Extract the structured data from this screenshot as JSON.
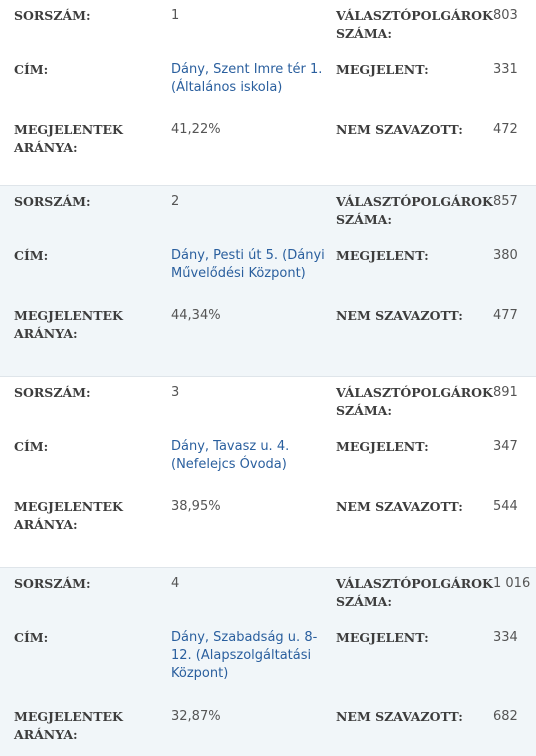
{
  "labels": {
    "number": "SORSZÁM:",
    "voters": "VÁLASZTÓPOLGÁROK SZÁMA:",
    "address": "CÍM:",
    "appeared": "MEGJELENT:",
    "turnout": "MEGJELENTEK ARÁNYA:",
    "not_voted": "NEM SZAVAZOTT:"
  },
  "stations": [
    {
      "number": "1",
      "voters": "803",
      "address": "Dány, Szent Imre tér 1. (Általános iskola)",
      "appeared": "331",
      "turnout": "41,22%",
      "not_voted": "472"
    },
    {
      "number": "2",
      "voters": "857",
      "address": "Dány, Pesti út 5. (Dányi Művelődési Központ)",
      "appeared": "380",
      "turnout": "44,34%",
      "not_voted": "477"
    },
    {
      "number": "3",
      "voters": "891",
      "address": "Dány, Tavasz u. 4. (Nefelejcs Óvoda)",
      "appeared": "347",
      "turnout": "38,95%",
      "not_voted": "544"
    },
    {
      "number": "4",
      "voters": "1 016",
      "address": "Dány, Szabadság u. 8-12. (Alapszolgáltatási Központ)",
      "appeared": "334",
      "turnout": "32,87%",
      "not_voted": "682"
    }
  ]
}
